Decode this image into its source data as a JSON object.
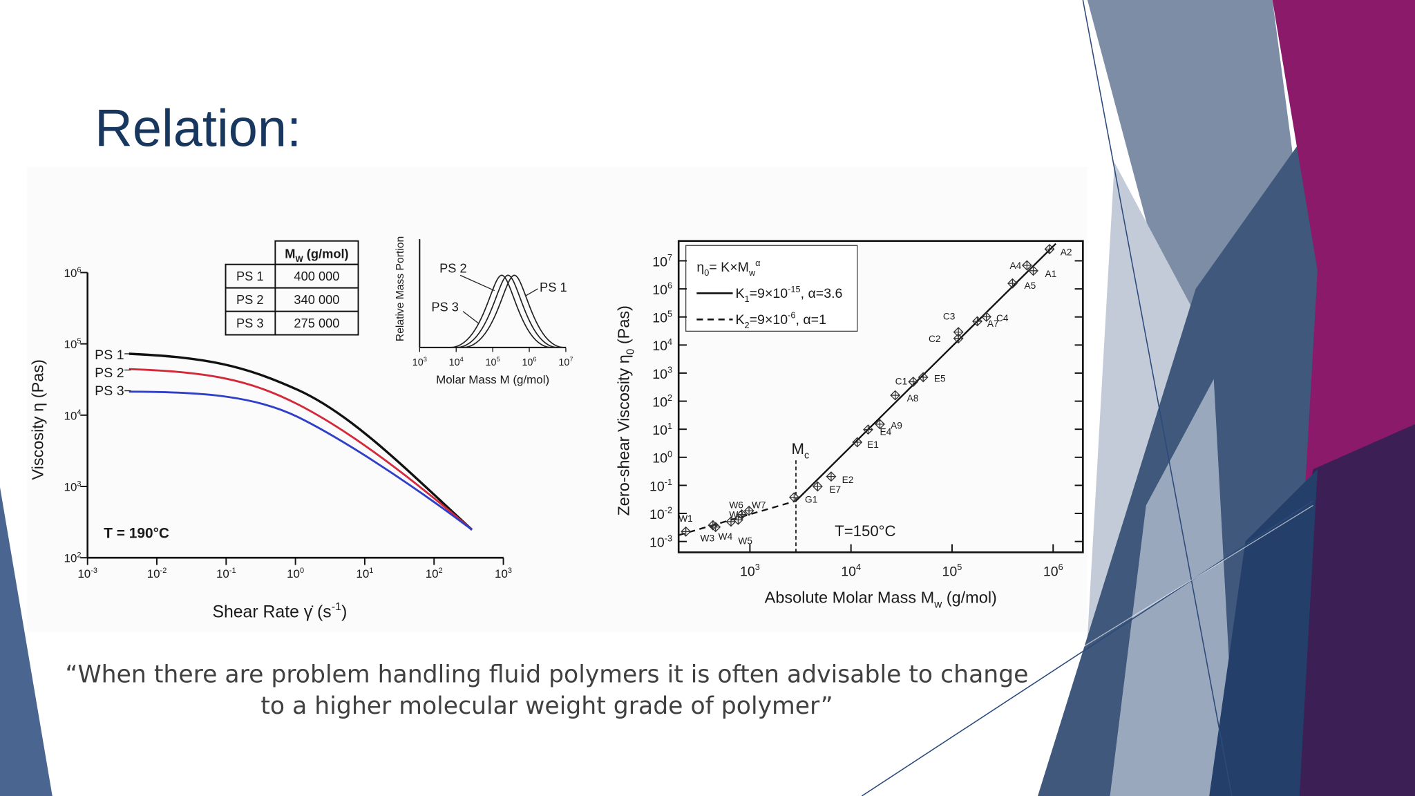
{
  "title": "Relation:",
  "figure_left": {
    "table": {
      "header": [
        {
          "t": "M"
        },
        {
          "sub": "W"
        },
        {
          "t": " (g/mol)"
        }
      ],
      "rows": [
        [
          "PS 1",
          "400 000"
        ],
        [
          "PS 2",
          "340 000"
        ],
        [
          "PS 3",
          "275 000"
        ]
      ]
    },
    "inset": {
      "y_label": "Relative Mass Portion",
      "x_label": "Molar Mass M (g/mol)",
      "x_ticks": [
        [
          {
            "t": "10"
          },
          {
            "sup": "3"
          }
        ],
        [
          {
            "t": "10"
          },
          {
            "sup": "4"
          }
        ],
        [
          {
            "t": "10"
          },
          {
            "sup": "5"
          }
        ],
        [
          {
            "t": "10"
          },
          {
            "sup": "6"
          }
        ],
        [
          {
            "t": "10"
          },
          {
            "sup": "7"
          }
        ]
      ],
      "curve_labels": [
        "PS 2",
        "PS 3",
        "PS 1"
      ]
    },
    "main": {
      "y_label": "Viscosity η (Pas)",
      "x_label": [
        {
          "t": "Shear Rate γ̇ (s"
        },
        {
          "sup": "-1"
        },
        {
          "t": ")"
        }
      ],
      "x_ticks": [
        [
          {
            "t": "10"
          },
          {
            "sup": "-3"
          }
        ],
        [
          {
            "t": "10"
          },
          {
            "sup": "-2"
          }
        ],
        [
          {
            "t": "10"
          },
          {
            "sup": "-1"
          }
        ],
        [
          {
            "t": "10"
          },
          {
            "sup": "0"
          }
        ],
        [
          {
            "t": "10"
          },
          {
            "sup": "1"
          }
        ],
        [
          {
            "t": "10"
          },
          {
            "sup": "2"
          }
        ],
        [
          {
            "t": "10"
          },
          {
            "sup": "3"
          }
        ]
      ],
      "y_ticks": [
        [
          {
            "t": "10"
          },
          {
            "sup": "6"
          }
        ],
        [
          {
            "t": "10"
          },
          {
            "sup": "5"
          }
        ],
        [
          {
            "t": "10"
          },
          {
            "sup": "4"
          }
        ],
        [
          {
            "t": "10"
          },
          {
            "sup": "3"
          }
        ],
        [
          {
            "t": "10"
          },
          {
            "sup": "2"
          }
        ]
      ],
      "curve_labels": [
        "PS 1",
        "PS 2",
        "PS 3"
      ],
      "annotation": "T = 190°C"
    }
  },
  "figure_right": {
    "legend": [
      [
        {
          "t": "η"
        },
        {
          "sub": "0"
        },
        {
          "t": "= K×M"
        },
        {
          "sub": "w"
        },
        {
          "sup": "α"
        }
      ],
      [
        {
          "t": "K"
        },
        {
          "sub": "1"
        },
        {
          "t": "=9×10"
        },
        {
          "sup": "-15"
        },
        {
          "t": ", α=3.6"
        }
      ],
      [
        {
          "t": "K"
        },
        {
          "sub": "2"
        },
        {
          "t": "=9×10"
        },
        {
          "sup": "-6"
        },
        {
          "t": ", α=1"
        }
      ]
    ],
    "y_label": [
      {
        "t": "Zero-shear Viscosity η"
      },
      {
        "sub": "0"
      },
      {
        "t": " (Pas)"
      }
    ],
    "x_label": [
      {
        "t": "Absolute Molar Mass M"
      },
      {
        "sub": "w"
      },
      {
        "t": " (g/mol)"
      }
    ],
    "y_ticks": [
      [
        {
          "t": "10"
        },
        {
          "sup": "7"
        }
      ],
      [
        {
          "t": "10"
        },
        {
          "sup": "6"
        }
      ],
      [
        {
          "t": "10"
        },
        {
          "sup": "5"
        }
      ],
      [
        {
          "t": "10"
        },
        {
          "sup": "4"
        }
      ],
      [
        {
          "t": "10"
        },
        {
          "sup": "3"
        }
      ],
      [
        {
          "t": "10"
        },
        {
          "sup": "2"
        }
      ],
      [
        {
          "t": "10"
        },
        {
          "sup": "1"
        }
      ],
      [
        {
          "t": "10"
        },
        {
          "sup": "0"
        }
      ],
      [
        {
          "t": "10"
        },
        {
          "sup": "-1"
        }
      ],
      [
        {
          "t": "10"
        },
        {
          "sup": "-2"
        }
      ],
      [
        {
          "t": "10"
        },
        {
          "sup": "-3"
        }
      ]
    ],
    "x_ticks": [
      [
        {
          "t": "10"
        },
        {
          "sup": "3"
        }
      ],
      [
        {
          "t": "10"
        },
        {
          "sup": "4"
        }
      ],
      [
        {
          "t": "10"
        },
        {
          "sup": "5"
        }
      ],
      [
        {
          "t": "10"
        },
        {
          "sup": "6"
        }
      ]
    ],
    "critical_mass": [
      {
        "t": "M"
      },
      {
        "sub": "c"
      }
    ],
    "annotation": "T=150°C",
    "point_labels": [
      "W1",
      "W2",
      "W3",
      "W4",
      "W5",
      "W6",
      "W7",
      "G1",
      "E7",
      "E2",
      "E1",
      "E4",
      "A9",
      "A8",
      "C1",
      "E5",
      "C2",
      "C3",
      "A7",
      "C4",
      "A5",
      "A1",
      "A4",
      "A2"
    ]
  },
  "quote": [
    "“When there are problem handling fluid polymers it is often advisable to change",
    "to a higher molecular weight grade of polymer”"
  ]
}
